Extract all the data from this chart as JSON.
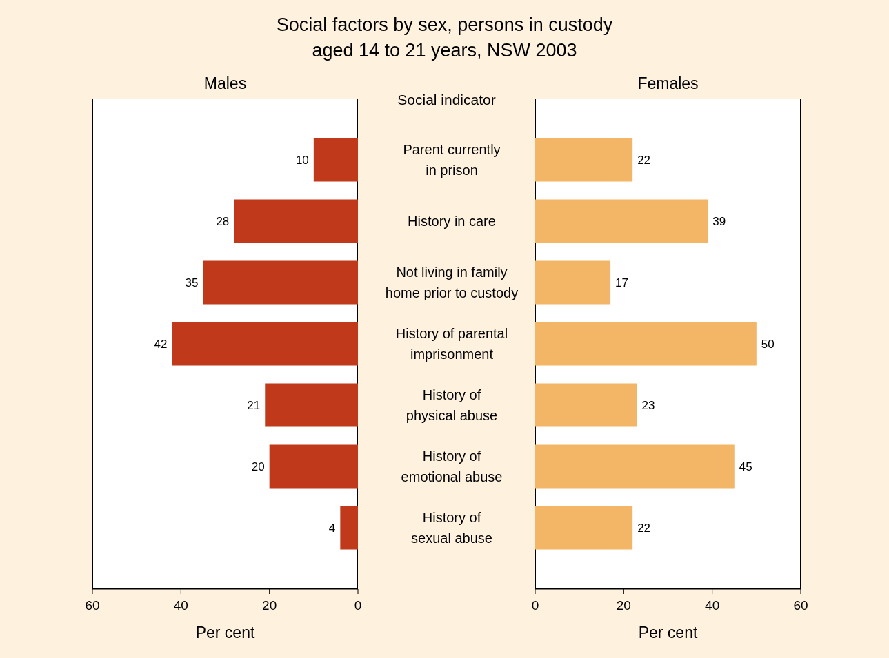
{
  "chart_data": [
    {
      "type": "bar",
      "orientation": "horizontal",
      "title": "Social factors by sex, persons in custody aged 14 to 21 years, NSW 2003",
      "subtitle": "Males",
      "ylabel": "Social indicator",
      "xlabel": "Per cent",
      "categories": [
        "Parent currently in prison",
        "History in care",
        "Not living in family home prior to custody",
        "History of parental imprisonment",
        "History of physical abuse",
        "History of emotional abuse",
        "History of sexual abuse"
      ],
      "values": [
        10,
        28,
        35,
        42,
        21,
        20,
        4
      ],
      "color": "#c0391a",
      "xlim": [
        60,
        0
      ],
      "xticks": [
        60,
        40,
        20,
        0
      ],
      "data_labels": true,
      "grid": false,
      "legend": false
    },
    {
      "type": "bar",
      "orientation": "horizontal",
      "title": "Females",
      "xlabel": "Per cent",
      "values": [
        22,
        39,
        17,
        50,
        23,
        45,
        22
      ],
      "color": "#f3b566",
      "xlim": [
        0,
        60
      ],
      "xticks": [
        0,
        20,
        40,
        60
      ],
      "data_labels": true,
      "grid": false,
      "legend": false,
      "tick_labels": "x"
    }
  ]
}
